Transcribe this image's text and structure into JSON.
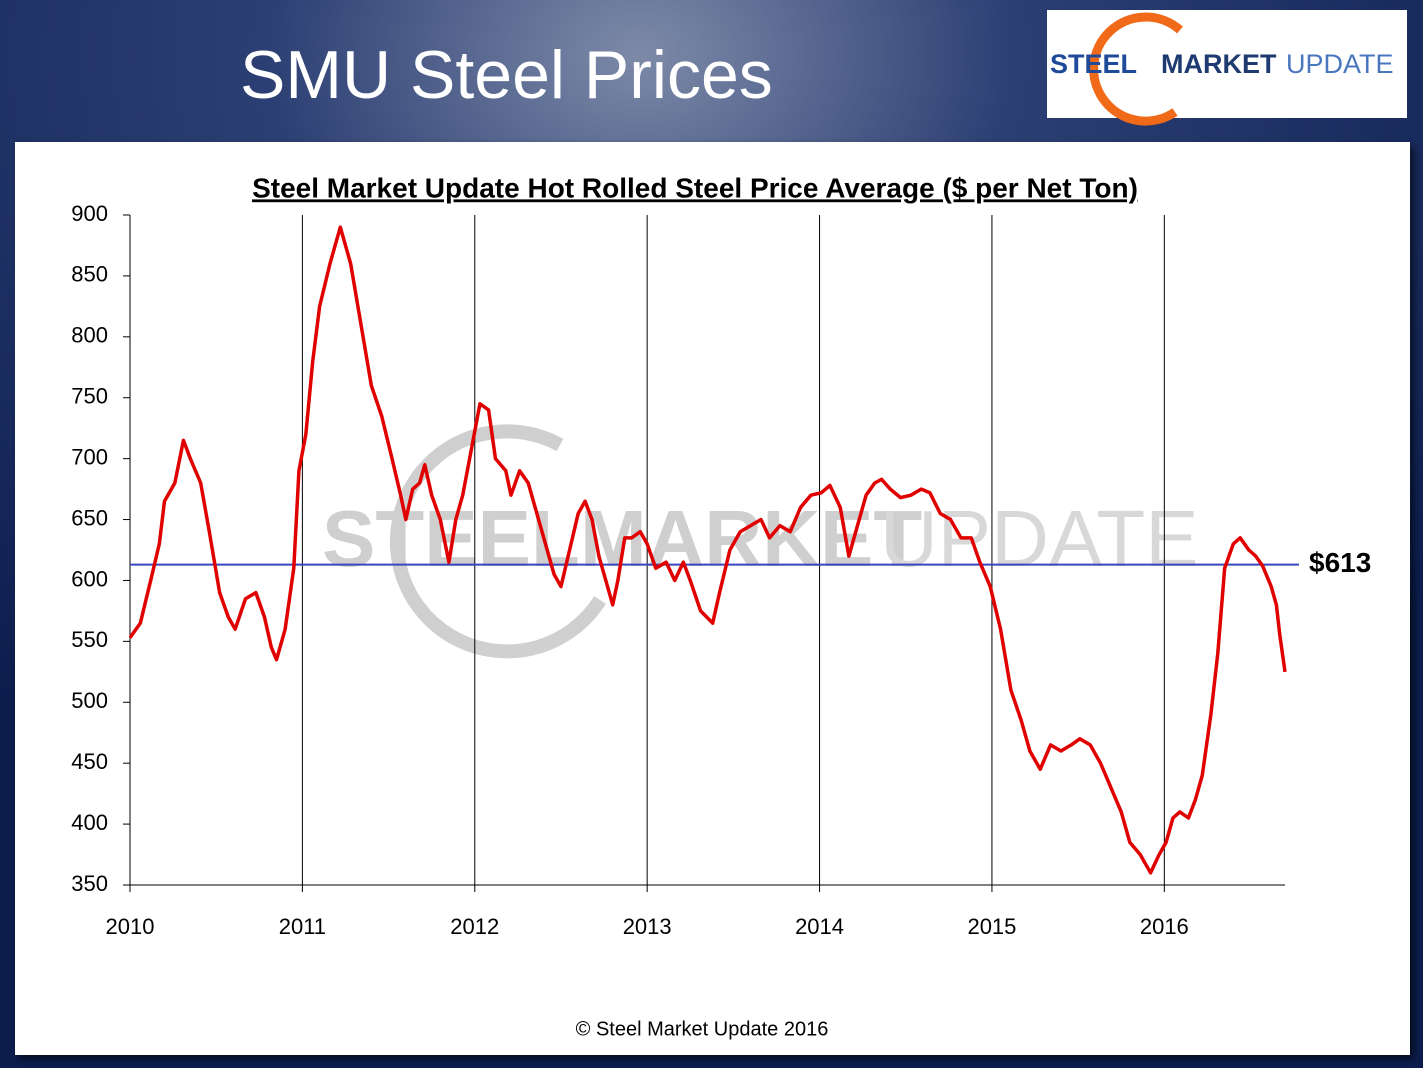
{
  "slide_title": "SMU Steel Prices",
  "logo": [
    "STEEL",
    "MARKET",
    "UPDATE"
  ],
  "copyright": "© Steel Market Update 2016",
  "chart_data": {
    "type": "line",
    "title": "Steel Market Update Hot Rolled Steel Price Average ($ per Net Ton)",
    "color": "#e00000",
    "x": [
      2010.0,
      2010.06,
      2010.12,
      2010.17,
      2010.2,
      2010.26,
      2010.31,
      2010.35,
      2010.41,
      2010.46,
      2010.52,
      2010.57,
      2010.61,
      2010.67,
      2010.73,
      2010.78,
      2010.82,
      2010.85,
      2010.9,
      2010.95,
      2010.98,
      2011.02,
      2011.06,
      2011.1,
      2011.16,
      2011.22,
      2011.28,
      2011.34,
      2011.4,
      2011.46,
      2011.52,
      2011.57,
      2011.6,
      2011.64,
      2011.68,
      2011.71,
      2011.75,
      2011.8,
      2011.85,
      2011.89,
      2011.93,
      2011.97,
      2012.03,
      2012.08,
      2012.12,
      2012.18,
      2012.21,
      2012.26,
      2012.31,
      2012.36,
      2012.41,
      2012.46,
      2012.5,
      2012.55,
      2012.6,
      2012.64,
      2012.68,
      2012.72,
      2012.76,
      2012.8,
      2012.83,
      2012.87,
      2012.91,
      2012.96,
      2013.0,
      2013.05,
      2013.11,
      2013.16,
      2013.21,
      2013.25,
      2013.31,
      2013.38,
      2013.42,
      2013.48,
      2013.54,
      2013.6,
      2013.66,
      2013.71,
      2013.77,
      2013.83,
      2013.89,
      2013.95,
      2014.01,
      2014.06,
      2014.12,
      2014.17,
      2014.21,
      2014.27,
      2014.32,
      2014.36,
      2014.41,
      2014.47,
      2014.53,
      2014.59,
      2014.64,
      2014.7,
      2014.76,
      2014.82,
      2014.88,
      2014.93,
      2014.99,
      2015.05,
      2015.11,
      2015.17,
      2015.22,
      2015.28,
      2015.34,
      2015.4,
      2015.46,
      2015.51,
      2015.57,
      2015.63,
      2015.69,
      2015.75,
      2015.8,
      2015.86,
      2015.92,
      2015.97,
      2016.01,
      2016.05,
      2016.09,
      2016.14,
      2016.18,
      2016.22,
      2016.27,
      2016.31,
      2016.35,
      2016.4,
      2016.44,
      2016.49,
      2016.53,
      2016.57,
      2016.62,
      2016.65,
      2016.67,
      2016.7
    ],
    "values": [
      553,
      565,
      600,
      630,
      665,
      680,
      715,
      700,
      680,
      640,
      590,
      570,
      560,
      585,
      590,
      570,
      545,
      535,
      560,
      610,
      690,
      720,
      780,
      825,
      860,
      890,
      860,
      810,
      760,
      735,
      700,
      670,
      650,
      675,
      680,
      695,
      670,
      650,
      615,
      650,
      670,
      700,
      745,
      740,
      700,
      690,
      670,
      690,
      680,
      655,
      630,
      605,
      595,
      625,
      655,
      665,
      650,
      620,
      600,
      580,
      600,
      635,
      635,
      640,
      630,
      610,
      615,
      600,
      615,
      600,
      575,
      565,
      590,
      625,
      640,
      645,
      650,
      635,
      645,
      640,
      660,
      670,
      672,
      678,
      660,
      620,
      640,
      670,
      680,
      683,
      675,
      668,
      670,
      675,
      672,
      655,
      650,
      635,
      635,
      615,
      595,
      560,
      510,
      485,
      460,
      445,
      465,
      460,
      465,
      470,
      465,
      450,
      430,
      410,
      385,
      375,
      360,
      375,
      385,
      405,
      410,
      405,
      420,
      440,
      490,
      540,
      610,
      630,
      635,
      625,
      620,
      612,
      595,
      580,
      555,
      525
    ],
    "xlim": [
      2010,
      2016.7
    ],
    "xticks": [
      2010,
      2011,
      2012,
      2013,
      2014,
      2015,
      2016
    ],
    "ylim": [
      350,
      900
    ],
    "yticks": [
      350,
      400,
      450,
      500,
      550,
      600,
      650,
      700,
      750,
      800,
      850,
      900
    ],
    "grid": "x",
    "reference_line": {
      "value": 613,
      "label": "$613",
      "color": "#3a45c0"
    }
  }
}
